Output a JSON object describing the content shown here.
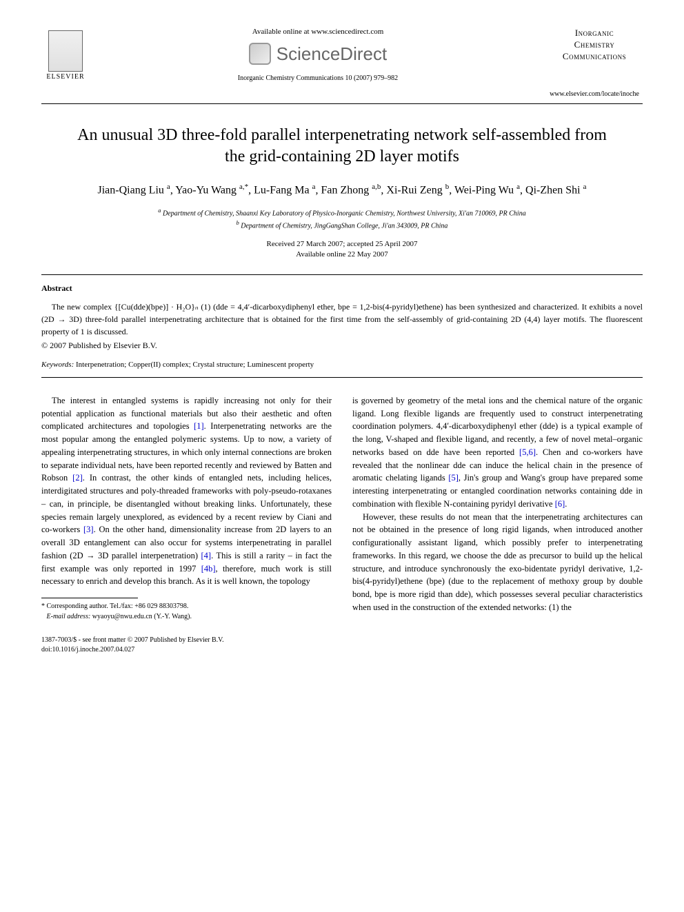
{
  "header": {
    "available_online": "Available online at www.sciencedirect.com",
    "sciencedirect": "ScienceDirect",
    "journal_ref": "Inorganic Chemistry Communications 10 (2007) 979–982",
    "elsevier": "ELSEVIER",
    "journal_name_line1": "Inorganic",
    "journal_name_line2": "Chemistry",
    "journal_name_line3": "Communications",
    "journal_url": "www.elsevier.com/locate/inoche"
  },
  "title": "An unusual 3D three-fold parallel interpenetrating network self-assembled from the grid-containing 2D layer motifs",
  "authors_html": "Jian-Qiang Liu <sup>a</sup>, Yao-Yu Wang <sup>a,*</sup>, Lu-Fang Ma <sup>a</sup>, Fan Zhong <sup>a,b</sup>, Xi-Rui Zeng <sup>b</sup>, Wei-Ping Wu <sup>a</sup>, Qi-Zhen Shi <sup>a</sup>",
  "affiliations": {
    "a": "Department of Chemistry, Shaanxi Key Laboratory of Physico-Inorganic Chemistry, Northwest University, Xi'an 710069, PR China",
    "b": "Department of Chemistry, JingGangShan College, Ji'an 343009, PR China"
  },
  "dates": {
    "received": "Received 27 March 2007; accepted 25 April 2007",
    "online": "Available online 22 May 2007"
  },
  "abstract": {
    "heading": "Abstract",
    "text": "The new complex {[Cu(dde)(bpe)] · H₂O}ₙ (1) (dde = 4,4′-dicarboxydiphenyl ether, bpe = 1,2-bis(4-pyridyl)ethene) has been synthesized and characterized. It exhibits a novel (2D → 3D) three-fold parallel interpenetrating architecture that is obtained for the first time from the self-assembly of grid-containing 2D (4,4) layer motifs. The fluorescent property of 1 is discussed.",
    "copyright": "© 2007 Published by Elsevier B.V."
  },
  "keywords": {
    "label": "Keywords:",
    "text": "Interpenetration; Copper(II) complex; Crystal structure; Luminescent property"
  },
  "body": {
    "col1_p1": "The interest in entangled systems is rapidly increasing not only for their potential application as functional materials but also their aesthetic and often complicated architectures and topologies [1]. Interpenetrating networks are the most popular among the entangled polymeric systems. Up to now, a variety of appealing interpenetrating structures, in which only internal connections are broken to separate individual nets, have been reported recently and reviewed by Batten and Robson [2]. In contrast, the other kinds of entangled nets, including helices, interdigitated structures and poly-threaded frameworks with poly-pseudo-rotaxanes – can, in principle, be disentangled without breaking links. Unfortunately, these species remain largely unexplored, as evidenced by a recent review by Ciani and co-workers [3]. On the other hand, dimensionality increase from 2D layers to an overall 3D entanglement can also occur for systems interpenetrating in parallel fashion (2D → 3D parallel interpenetration) [4]. This is still a rarity – in fact the first example was only reported in 1997 [4b], therefore, much work is still necessary to enrich and develop this branch. As it is well known, the topology",
    "col2_p1": "is governed by geometry of the metal ions and the chemical nature of the organic ligand. Long flexible ligands are frequently used to construct interpenetrating coordination polymers. 4,4′-dicarboxydiphenyl ether (dde) is a typical example of the long, V-shaped and flexible ligand, and recently, a few of novel metal–organic networks based on dde have been reported [5,6]. Chen and co-workers have revealed that the nonlinear dde can induce the helical chain in the presence of aromatic chelating ligands [5], Jin's group and Wang's group have prepared some interesting interpenetrating or entangled coordination networks containing dde in combination with flexible N-containing pyridyl derivative [6].",
    "col2_p2": "However, these results do not mean that the interpenetrating architectures can not be obtained in the presence of long rigid ligands, when introduced another configurationally assistant ligand, which possibly prefer to interpenetrating frameworks. In this regard, we choose the dde as precursor to build up the helical structure, and introduce synchronously the exo-bidentate pyridyl derivative, 1,2-bis(4-pyridyl)ethene (bpe) (due to the replacement of methoxy group by double bond, bpe is more rigid than dde), which possesses several peculiar characteristics when used in the construction of the extended networks: (1) the"
  },
  "footer": {
    "corresponding": "* Corresponding author. Tel./fax: +86 029 88303798.",
    "email_label": "E-mail address:",
    "email": "wyaoyu@nwu.edu.cn",
    "email_suffix": "(Y.-Y. Wang).",
    "issn": "1387-7003/$ - see front matter © 2007 Published by Elsevier B.V.",
    "doi": "doi:10.1016/j.inoche.2007.04.027"
  },
  "refs": {
    "r1": "[1]",
    "r2": "[2]",
    "r3": "[3]",
    "r4": "[4]",
    "r4b": "[4b]",
    "r5": "[5]",
    "r56": "[5,6]",
    "r6": "[6]"
  }
}
